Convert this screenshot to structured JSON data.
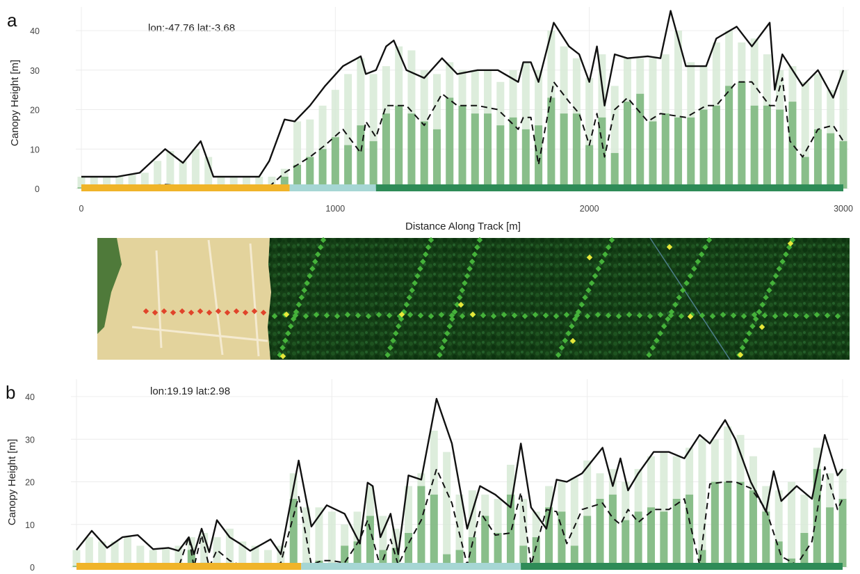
{
  "chart_data": [
    {
      "type": "bar",
      "panel_label": "a",
      "annotation": "lon:-47.76 lat:-3.68",
      "xlabel": "Distance Along Track [m]",
      "ylabel": "Canopy Height [m]",
      "xlim": [
        0,
        3000
      ],
      "ylim": [
        0,
        45
      ],
      "xticks": [
        "0",
        "1000",
        "2000",
        "3000"
      ],
      "yticks": [
        "0",
        "10",
        "20",
        "30",
        "40"
      ],
      "grid": true,
      "colors": {
        "max_bar": "#d7ead6",
        "mean_bar": "#7fb881",
        "max_line": "#111111",
        "mean_line": "#111111",
        "segment_bare": "#f0b429",
        "segment_transition": "#a6d6d4",
        "segment_forest": "#2e8b57"
      },
      "series": [
        {
          "kind": "max_height_line",
          "x": [
            0,
            100,
            140,
            230,
            330,
            400,
            470,
            520,
            600,
            700,
            740,
            800,
            840,
            900,
            960,
            1030,
            1100,
            1120,
            1160,
            1200,
            1230,
            1280,
            1350,
            1420,
            1480,
            1560,
            1640,
            1720,
            1740,
            1770,
            1800,
            1860,
            1920,
            1960,
            2000,
            2030,
            2060,
            2100,
            2150,
            2230,
            2280,
            2320,
            2380,
            2460,
            2500,
            2580,
            2640,
            2710,
            2730,
            2760,
            2790,
            2840,
            2900,
            2960,
            3000
          ],
          "y": [
            3,
            3,
            3,
            4,
            10,
            6.5,
            12,
            3,
            3,
            3,
            7,
            17.5,
            17,
            21,
            26,
            31,
            33.5,
            29,
            30,
            36,
            37.5,
            30,
            28,
            33,
            29,
            30,
            30,
            27,
            32,
            32,
            27,
            42,
            36,
            34,
            27,
            36,
            21,
            34,
            33,
            33.5,
            33,
            45,
            31,
            31,
            38,
            41,
            36,
            42,
            25,
            34,
            31,
            26,
            30,
            23,
            30
          ]
        },
        {
          "kind": "mean_height_line",
          "x": [
            0,
            200,
            330,
            450,
            600,
            740,
            800,
            900,
            960,
            1030,
            1100,
            1120,
            1160,
            1200,
            1280,
            1350,
            1420,
            1480,
            1560,
            1640,
            1720,
            1740,
            1770,
            1800,
            1860,
            1920,
            1960,
            2000,
            2030,
            2060,
            2100,
            2150,
            2230,
            2280,
            2380,
            2460,
            2500,
            2580,
            2640,
            2710,
            2730,
            2760,
            2790,
            2840,
            2900,
            2960,
            3000
          ],
          "y": [
            0.5,
            0.5,
            1,
            0.5,
            0.5,
            0.5,
            4,
            8,
            11,
            15,
            9,
            17,
            13,
            21,
            21,
            16,
            24,
            21,
            21,
            20,
            15,
            18,
            18,
            6,
            27,
            22,
            19,
            11,
            19,
            8,
            20,
            23,
            17,
            19,
            18,
            21,
            21,
            27,
            27,
            21,
            21,
            28,
            12,
            8,
            15,
            16,
            12
          ]
        }
      ],
      "bars": {
        "x": [
          0,
          50,
          100,
          150,
          200,
          250,
          300,
          350,
          400,
          450,
          500,
          550,
          600,
          650,
          700,
          750,
          800,
          850,
          900,
          950,
          1000,
          1050,
          1100,
          1150,
          1200,
          1250,
          1300,
          1350,
          1400,
          1450,
          1500,
          1550,
          1600,
          1650,
          1700,
          1750,
          1800,
          1850,
          1900,
          1950,
          2000,
          2050,
          2100,
          2150,
          2200,
          2250,
          2300,
          2350,
          2400,
          2450,
          2500,
          2550,
          2600,
          2650,
          2700,
          2750,
          2800,
          2850,
          2900,
          2950,
          3000
        ],
        "max": [
          3,
          3,
          3,
          3,
          3.5,
          4,
          7,
          9.5,
          7,
          10,
          8,
          3,
          3,
          3,
          3,
          3,
          5,
          17,
          17.5,
          21,
          25,
          29,
          33,
          29,
          31,
          36,
          35,
          30,
          29,
          32,
          30,
          30,
          30,
          27,
          30,
          32,
          30,
          40,
          36,
          33,
          28,
          34,
          26,
          33,
          33,
          33,
          34,
          40,
          32,
          31,
          37,
          40,
          37,
          38,
          34,
          30,
          31,
          27,
          29,
          25,
          30
        ],
        "mean": [
          0.3,
          0.3,
          0.3,
          0.3,
          0.3,
          0.3,
          0.5,
          1,
          0.5,
          1,
          0.5,
          0.3,
          0.3,
          0.3,
          0.3,
          0.3,
          3,
          6,
          8,
          10,
          13,
          11,
          16,
          12,
          19,
          21,
          19,
          17,
          15,
          23,
          21,
          19,
          19,
          16,
          18,
          15,
          16,
          23,
          19,
          19,
          11,
          18,
          9,
          22,
          24,
          17,
          19,
          18,
          18,
          20,
          21,
          26,
          27,
          21,
          21,
          20,
          22,
          8,
          15,
          14,
          12
        ]
      },
      "segments": [
        {
          "class": "bare",
          "x_start": 0,
          "x_end": 820
        },
        {
          "class": "transition",
          "x_start": 820,
          "x_end": 1160
        },
        {
          "class": "forest",
          "x_start": 1160,
          "x_end": 3000
        }
      ]
    },
    {
      "type": "bar",
      "panel_label": "b",
      "annotation": "lon:19.19 lat:2.98",
      "xlabel": "",
      "ylabel": "Canopy Height [m]",
      "xlim": [
        0,
        3000
      ],
      "ylim": [
        0,
        40
      ],
      "xticks": [],
      "yticks": [
        "0",
        "10",
        "20",
        "30",
        "40"
      ],
      "grid": true,
      "series": [
        {
          "kind": "max_height_line",
          "x": [
            0,
            60,
            120,
            180,
            240,
            300,
            360,
            400,
            440,
            460,
            490,
            520,
            550,
            600,
            640,
            680,
            760,
            800,
            870,
            920,
            980,
            1050,
            1110,
            1140,
            1160,
            1190,
            1230,
            1260,
            1300,
            1350,
            1410,
            1470,
            1530,
            1580,
            1640,
            1700,
            1740,
            1780,
            1840,
            1880,
            1920,
            1980,
            2060,
            2100,
            2130,
            2160,
            2200,
            2260,
            2320,
            2380,
            2440,
            2480,
            2540,
            2580,
            2640,
            2700,
            2730,
            2760,
            2820,
            2880,
            2930,
            2980,
            3000
          ],
          "y": [
            4,
            8.5,
            4.5,
            7,
            7.5,
            4.2,
            4.5,
            3.8,
            7,
            3,
            9,
            3.5,
            11,
            7,
            5.5,
            3.8,
            6.5,
            3,
            25,
            9.5,
            14.5,
            12.5,
            5.5,
            19.8,
            19,
            7,
            12.5,
            3,
            21.5,
            20.5,
            39.5,
            29,
            9,
            19,
            17,
            14,
            29,
            14,
            9,
            20.5,
            20,
            22,
            28,
            19,
            25.5,
            18,
            22,
            27,
            27,
            25.5,
            31,
            29,
            34.5,
            30,
            20,
            13,
            22.5,
            15.5,
            19,
            16,
            31,
            21.5,
            23
          ]
        },
        {
          "kind": "mean_height_line",
          "x": [
            0,
            400,
            440,
            460,
            490,
            520,
            550,
            600,
            640,
            700,
            760,
            800,
            870,
            920,
            960,
            1000,
            1050,
            1110,
            1140,
            1190,
            1230,
            1260,
            1300,
            1350,
            1410,
            1470,
            1530,
            1580,
            1640,
            1700,
            1740,
            1780,
            1840,
            1880,
            1920,
            1980,
            2060,
            2100,
            2130,
            2160,
            2200,
            2260,
            2320,
            2380,
            2440,
            2480,
            2540,
            2580,
            2640,
            2700,
            2730,
            2760,
            2820,
            2880,
            2930,
            2980,
            3000
          ],
          "y": [
            0,
            0,
            7,
            0,
            7.5,
            0,
            4,
            1.5,
            0.5,
            0,
            0,
            1,
            16.5,
            0.5,
            1.5,
            1.5,
            1,
            6.5,
            11,
            0,
            6.5,
            0.5,
            5.5,
            11,
            23,
            15,
            0.5,
            13,
            7.5,
            8,
            17.5,
            0.5,
            13.5,
            13,
            5.5,
            13.5,
            15,
            11.5,
            10,
            13.5,
            10.5,
            13.5,
            13.5,
            16,
            0.5,
            19.5,
            20,
            20,
            18.5,
            13.5,
            8,
            2.5,
            0.5,
            6,
            23.5,
            13.5,
            16
          ]
        }
      ],
      "bars": {
        "x": [
          0,
          50,
          100,
          150,
          200,
          250,
          300,
          350,
          400,
          450,
          500,
          550,
          600,
          650,
          700,
          750,
          800,
          850,
          900,
          950,
          1000,
          1050,
          1100,
          1150,
          1200,
          1250,
          1300,
          1350,
          1400,
          1450,
          1500,
          1550,
          1600,
          1650,
          1700,
          1750,
          1800,
          1850,
          1900,
          1950,
          2000,
          2050,
          2100,
          2150,
          2200,
          2250,
          2300,
          2350,
          2400,
          2450,
          2500,
          2550,
          2600,
          2650,
          2700,
          2750,
          2800,
          2850,
          2900,
          2950,
          3000
        ],
        "max": [
          4,
          7,
          6,
          6,
          7,
          5,
          4,
          4.5,
          5,
          7,
          8,
          7,
          9,
          6,
          5,
          4,
          5,
          22,
          14,
          14,
          13,
          10,
          13,
          19,
          12,
          9,
          19,
          22,
          32,
          27,
          17,
          18,
          17,
          16,
          24,
          16,
          13,
          19,
          20,
          21,
          25,
          22,
          23,
          20,
          23,
          26,
          27,
          26,
          28,
          30,
          30,
          33,
          31,
          26,
          19,
          18,
          20,
          17,
          28,
          22,
          23
        ],
        "mean": [
          0.3,
          0.3,
          0.3,
          0.3,
          0.3,
          0.3,
          0.3,
          0.3,
          0.5,
          4,
          1,
          0.5,
          1,
          0.5,
          0.3,
          0.3,
          0.5,
          16,
          1,
          1.5,
          1,
          5,
          6,
          12,
          4,
          4.5,
          8,
          19,
          17,
          3,
          4,
          7,
          12,
          8,
          17,
          5,
          7,
          14,
          13,
          5,
          12,
          16,
          17,
          11,
          13,
          14,
          13,
          16,
          17,
          4,
          20,
          20,
          20,
          18,
          13,
          6,
          2,
          8,
          23,
          14,
          16
        ]
      },
      "segments": [
        {
          "class": "bare",
          "x_start": 0,
          "x_end": 880
        },
        {
          "class": "transition",
          "x_start": 880,
          "x_end": 1740
        },
        {
          "class": "forest",
          "x_start": 1740,
          "x_end": 3000
        }
      ]
    }
  ],
  "satellite_strip": {
    "colors": {
      "bare_soil": "#e5d6a0",
      "bare_soil_lines": "#f3e9c4",
      "forest_dark": "#0f3d12",
      "forest_mid": "#1d5a1f",
      "footprint_low": "#e0442a",
      "footprint_mid": "#45b23a",
      "footprint_high": "#e6e83a",
      "river_line": "#4d7d8a"
    }
  }
}
